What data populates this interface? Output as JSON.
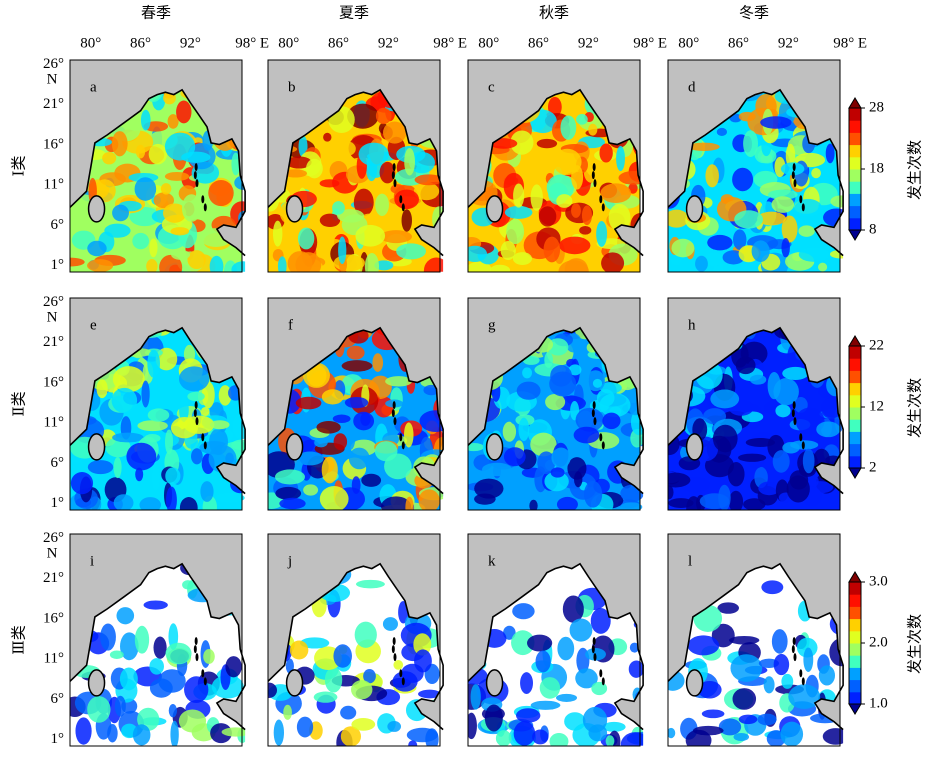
{
  "columns": [
    "春季",
    "夏季",
    "秋季",
    "冬季"
  ],
  "x_ticks": [
    "80°",
    "86°",
    "92°",
    "98° E"
  ],
  "y_ticks": [
    "26°",
    "21°",
    "16°",
    "11°",
    "6°",
    "1°"
  ],
  "y_north": "N",
  "rows": [
    {
      "label": "Ⅰ类",
      "panels": [
        "a",
        "b",
        "c",
        "d"
      ],
      "colorbar": {
        "ticks": [
          "28",
          "18",
          "8"
        ],
        "label": "发生次数"
      }
    },
    {
      "label": "Ⅱ类",
      "panels": [
        "e",
        "f",
        "g",
        "h"
      ],
      "colorbar": {
        "ticks": [
          "22",
          "12",
          "2"
        ],
        "label": "发生次数"
      }
    },
    {
      "label": "Ⅲ类",
      "panels": [
        "i",
        "j",
        "k",
        "l"
      ],
      "colorbar": {
        "ticks": [
          "3.0",
          "2.0",
          "1.0"
        ],
        "label": "发生次数"
      }
    }
  ]
}
